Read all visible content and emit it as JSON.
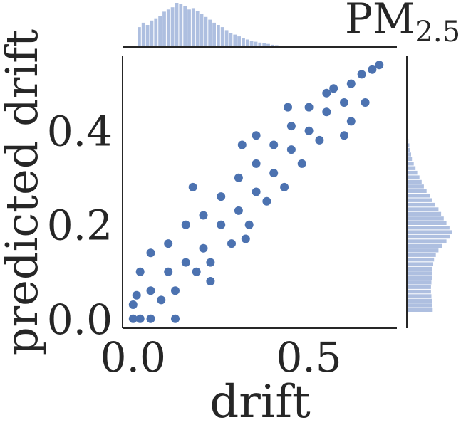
{
  "chart_data": {
    "type": "scatter",
    "title": "PM",
    "title_subscript": "2.5",
    "xlabel": "drift",
    "ylabel": "predicted drift",
    "xlim": [
      -0.03,
      0.75
    ],
    "ylim": [
      -0.02,
      0.56
    ],
    "x_ticks": [
      "0.0",
      "0.5"
    ],
    "x_tick_values": [
      0.0,
      0.5
    ],
    "y_ticks": [
      "0.0",
      "0.2",
      "0.4"
    ],
    "y_tick_values": [
      0.0,
      0.2,
      0.4
    ],
    "grid": false,
    "legend": "none",
    "marginal_histograms": true,
    "colors": {
      "points": "#4c72b0",
      "hist": "#aebfe0",
      "axis": "#262626"
    },
    "series": [
      {
        "points": [
          [
            0.0,
            0.0
          ],
          [
            0.01,
            0.05
          ],
          [
            0.02,
            0.1
          ],
          [
            0.05,
            0.0
          ],
          [
            0.05,
            0.06
          ],
          [
            0.08,
            0.04
          ],
          [
            0.1,
            0.1
          ],
          [
            0.1,
            0.16
          ],
          [
            0.12,
            0.06
          ],
          [
            0.15,
            0.12
          ],
          [
            0.15,
            0.2
          ],
          [
            0.18,
            0.1
          ],
          [
            0.2,
            0.15
          ],
          [
            0.2,
            0.22
          ],
          [
            0.22,
            0.12
          ],
          [
            0.25,
            0.2
          ],
          [
            0.25,
            0.26
          ],
          [
            0.28,
            0.16
          ],
          [
            0.3,
            0.23
          ],
          [
            0.3,
            0.3
          ],
          [
            0.33,
            0.2
          ],
          [
            0.35,
            0.27
          ],
          [
            0.35,
            0.33
          ],
          [
            0.38,
            0.25
          ],
          [
            0.4,
            0.31
          ],
          [
            0.4,
            0.37
          ],
          [
            0.43,
            0.28
          ],
          [
            0.45,
            0.36
          ],
          [
            0.45,
            0.41
          ],
          [
            0.48,
            0.33
          ],
          [
            0.5,
            0.4
          ],
          [
            0.5,
            0.45
          ],
          [
            0.53,
            0.38
          ],
          [
            0.55,
            0.44
          ],
          [
            0.57,
            0.49
          ],
          [
            0.6,
            0.46
          ],
          [
            0.62,
            0.5
          ],
          [
            0.65,
            0.52
          ],
          [
            0.68,
            0.53
          ],
          [
            0.7,
            0.54
          ],
          [
            0.0,
            0.03
          ],
          [
            0.02,
            0.0
          ],
          [
            0.17,
            0.28
          ],
          [
            0.31,
            0.37
          ],
          [
            0.44,
            0.45
          ],
          [
            0.55,
            0.48
          ],
          [
            0.6,
            0.39
          ],
          [
            0.32,
            0.17
          ],
          [
            0.22,
            0.08
          ],
          [
            0.35,
            0.39
          ],
          [
            0.62,
            0.42
          ],
          [
            0.05,
            0.14
          ],
          [
            0.12,
            0.0
          ],
          [
            0.66,
            0.46
          ]
        ]
      }
    ],
    "x_hist": [
      0.45,
      0.55,
      0.5,
      0.6,
      0.65,
      0.7,
      0.8,
      0.85,
      0.9,
      1.0,
      0.98,
      0.93,
      0.85,
      0.88,
      0.82,
      0.75,
      0.68,
      0.62,
      0.55,
      0.5,
      0.45,
      0.38,
      0.32,
      0.28,
      0.24,
      0.2,
      0.17,
      0.14,
      0.12,
      0.1,
      0.08,
      0.07,
      0.05,
      0.04,
      0.03,
      0.02,
      0.02,
      0.01
    ],
    "y_hist": [
      0.02,
      0.04,
      0.06,
      0.08,
      0.1,
      0.14,
      0.18,
      0.22,
      0.27,
      0.32,
      0.37,
      0.43,
      0.5,
      0.56,
      0.62,
      0.7,
      0.76,
      0.82,
      0.88,
      0.95,
      1.0,
      0.96,
      0.88,
      0.78,
      0.7,
      0.64,
      0.6,
      0.58,
      0.56,
      0.55,
      0.55,
      0.54,
      0.53,
      0.53,
      0.54,
      0.55,
      0.56,
      0.57
    ]
  }
}
